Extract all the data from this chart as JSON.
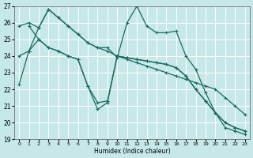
{
  "xlabel": "Humidex (Indice chaleur)",
  "xlim": [
    -0.5,
    23.5
  ],
  "ylim": [
    19,
    27
  ],
  "yticks": [
    19,
    20,
    21,
    22,
    23,
    24,
    25,
    26,
    27
  ],
  "xticks": [
    0,
    1,
    2,
    3,
    4,
    5,
    6,
    7,
    8,
    9,
    10,
    11,
    12,
    13,
    14,
    15,
    16,
    17,
    18,
    19,
    20,
    21,
    22,
    23
  ],
  "background_color": "#c6e8e8",
  "grid_color": "#ffffff",
  "line_color": "#1a6b5a",
  "series": {
    "line1_x": [
      0,
      1,
      2,
      3,
      4,
      5,
      6,
      7,
      8,
      9,
      10,
      11,
      12,
      13,
      14,
      15,
      16,
      17,
      18,
      19,
      20,
      21,
      22,
      23
    ],
    "line1_y": [
      22.3,
      24.3,
      25.7,
      26.8,
      26.3,
      25.8,
      25.3,
      24.8,
      24.5,
      24.5,
      23.9,
      26.0,
      27.0,
      25.8,
      25.4,
      25.4,
      25.5,
      24.0,
      23.2,
      21.8,
      20.6,
      19.7,
      19.5,
      19.3
    ],
    "line2_x": [
      0,
      1,
      2,
      3,
      4,
      5,
      6,
      7,
      8,
      9,
      10,
      11,
      12,
      13,
      14,
      15,
      16,
      17,
      18,
      19,
      20,
      21,
      22,
      23
    ],
    "line2_y": [
      25.8,
      26.0,
      25.7,
      26.8,
      26.3,
      25.8,
      25.3,
      24.8,
      24.5,
      24.3,
      24.0,
      23.8,
      23.6,
      23.4,
      23.2,
      23.0,
      22.8,
      22.6,
      22.4,
      22.2,
      22.0,
      21.5,
      21.0,
      20.5
    ],
    "line3_x": [
      0,
      1,
      2,
      3,
      4,
      5,
      6,
      7,
      8,
      9,
      10,
      11,
      12,
      13,
      14,
      15,
      16,
      17,
      18,
      19,
      20,
      21,
      22,
      23
    ],
    "line3_y": [
      24.0,
      24.3,
      25.0,
      24.5,
      24.3,
      24.0,
      23.8,
      22.2,
      21.2,
      21.3,
      24.0,
      23.9,
      23.8,
      23.7,
      23.6,
      23.5,
      23.3,
      22.8,
      22.0,
      21.3,
      20.6,
      20.0,
      19.7,
      19.5
    ],
    "line4_x": [
      1,
      2,
      3,
      4,
      5,
      6,
      7,
      8,
      9,
      10,
      11,
      12,
      13,
      14,
      15,
      16,
      17,
      18,
      19,
      20,
      21,
      22,
      23
    ],
    "line4_y": [
      25.8,
      25.0,
      24.5,
      24.3,
      24.0,
      23.8,
      22.2,
      20.8,
      21.2,
      24.0,
      23.9,
      23.8,
      23.7,
      23.6,
      23.5,
      23.3,
      22.8,
      22.0,
      21.3,
      20.6,
      20.0,
      19.7,
      19.5
    ]
  }
}
